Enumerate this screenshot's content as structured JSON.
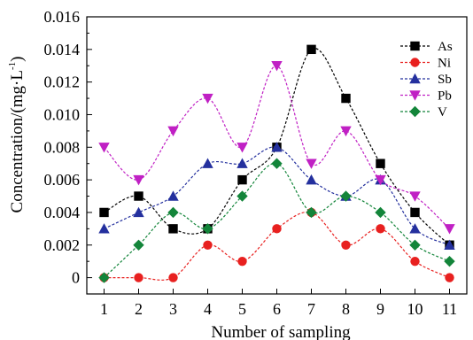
{
  "chart_data": {
    "type": "line",
    "xlabel": "Number of sampling",
    "ylabel": "Concentration/(mg·L",
    "ylabel_sup": "-1",
    "ylabel_close": ")",
    "x": [
      1,
      2,
      3,
      4,
      5,
      6,
      7,
      8,
      9,
      10,
      11
    ],
    "xlim": [
      0.5,
      11.5
    ],
    "ylim": [
      -0.001,
      0.016
    ],
    "xticks": [
      "1",
      "2",
      "3",
      "4",
      "5",
      "6",
      "7",
      "8",
      "9",
      "10",
      "11"
    ],
    "yticks": [
      "0",
      "0.002",
      "0.004",
      "0.006",
      "0.008",
      "0.010",
      "0.012",
      "0.014",
      "0.016"
    ],
    "ytick_values": [
      0,
      0.002,
      0.004,
      0.006,
      0.008,
      0.01,
      0.012,
      0.014,
      0.016
    ],
    "legend_position": "top-right",
    "grid": false,
    "smooth": true,
    "series": [
      {
        "name": "As",
        "color": "#000000",
        "marker": "square",
        "values": [
          0.004,
          0.005,
          0.003,
          0.003,
          0.006,
          0.008,
          0.014,
          0.011,
          0.007,
          0.004,
          0.002
        ]
      },
      {
        "name": "Ni",
        "color": "#e8201f",
        "marker": "circle",
        "values": [
          0.0,
          0.0,
          0.0,
          0.002,
          0.001,
          0.003,
          0.004,
          0.002,
          0.003,
          0.001,
          0.0
        ]
      },
      {
        "name": "Sb",
        "color": "#24309e",
        "marker": "triangle-up",
        "values": [
          0.003,
          0.004,
          0.005,
          0.007,
          0.007,
          0.008,
          0.006,
          0.005,
          0.006,
          0.003,
          0.002
        ]
      },
      {
        "name": "Pb",
        "color": "#c020c4",
        "marker": "triangle-down",
        "values": [
          0.008,
          0.006,
          0.009,
          0.011,
          0.008,
          0.013,
          0.007,
          0.009,
          0.006,
          0.005,
          0.003
        ]
      },
      {
        "name": "V",
        "color": "#13853a",
        "marker": "diamond",
        "values": [
          0.0,
          0.002,
          0.004,
          0.003,
          0.005,
          0.007,
          0.004,
          0.005,
          0.004,
          0.002,
          0.001
        ]
      }
    ]
  }
}
